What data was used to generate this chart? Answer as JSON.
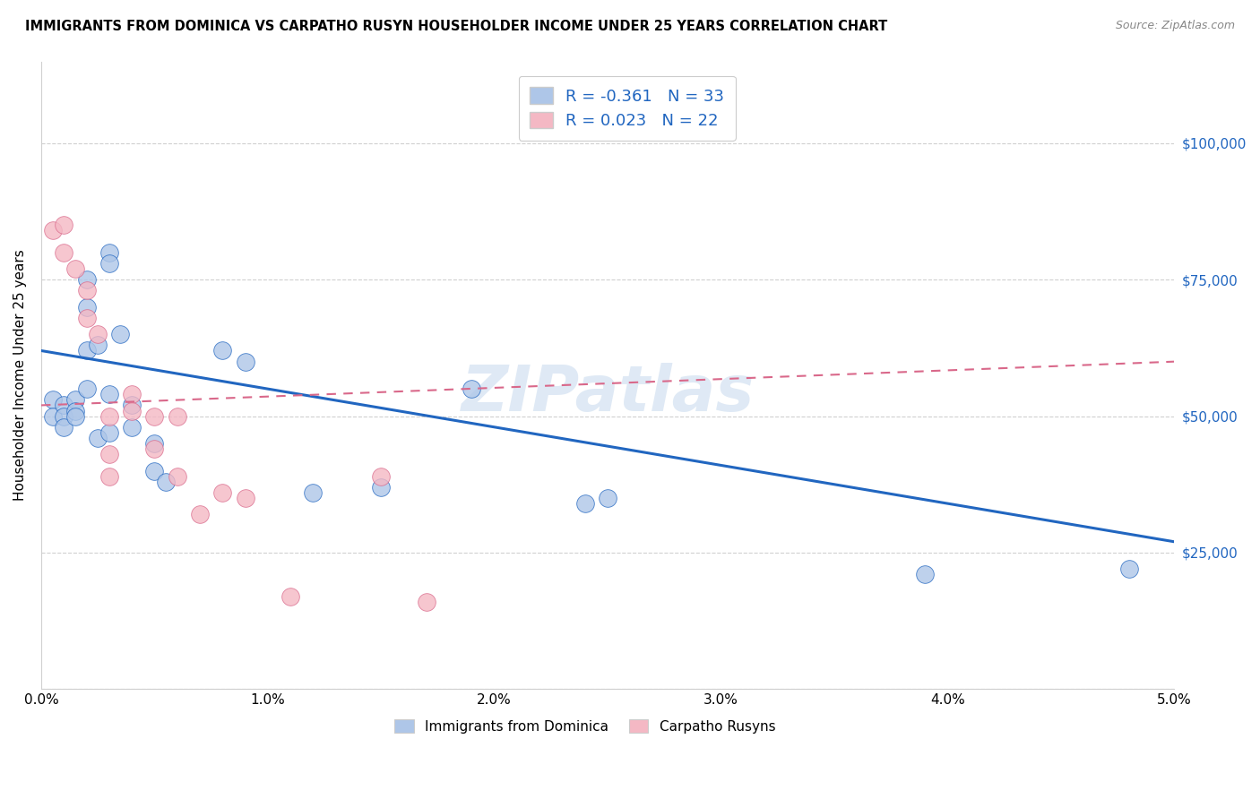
{
  "title": "IMMIGRANTS FROM DOMINICA VS CARPATHO RUSYN HOUSEHOLDER INCOME UNDER 25 YEARS CORRELATION CHART",
  "source": "Source: ZipAtlas.com",
  "ylabel": "Householder Income Under 25 years",
  "xlim": [
    0.0,
    0.05
  ],
  "ylim": [
    0,
    115000
  ],
  "yticks": [
    0,
    25000,
    50000,
    75000,
    100000
  ],
  "ytick_labels": [
    "",
    "$25,000",
    "$50,000",
    "$75,000",
    "$100,000"
  ],
  "xticks": [
    0.0,
    0.01,
    0.02,
    0.03,
    0.04,
    0.05
  ],
  "xtick_labels": [
    "0.0%",
    "1.0%",
    "2.0%",
    "3.0%",
    "4.0%",
    "5.0%"
  ],
  "blue_color": "#aec6e8",
  "pink_color": "#f4b8c4",
  "blue_line_color": "#2166c0",
  "pink_line_color": "#d9688a",
  "legend_R1": "-0.361",
  "legend_N1": "33",
  "legend_R2": "0.023",
  "legend_N2": "22",
  "legend_label1": "Immigrants from Dominica",
  "legend_label2": "Carpatho Rusyns",
  "watermark": "ZIPatlas",
  "blue_trend_x0": 0.0,
  "blue_trend_y0": 62000,
  "blue_trend_x1": 0.05,
  "blue_trend_y1": 27000,
  "pink_trend_x0": 0.0,
  "pink_trend_y0": 52000,
  "pink_trend_x1": 0.05,
  "pink_trend_y1": 60000,
  "blue_x": [
    0.0005,
    0.0005,
    0.001,
    0.001,
    0.001,
    0.0015,
    0.0015,
    0.0015,
    0.002,
    0.002,
    0.002,
    0.002,
    0.0025,
    0.0025,
    0.003,
    0.003,
    0.003,
    0.003,
    0.0035,
    0.004,
    0.004,
    0.005,
    0.005,
    0.0055,
    0.008,
    0.009,
    0.012,
    0.015,
    0.019,
    0.024,
    0.025,
    0.039,
    0.048
  ],
  "blue_y": [
    53000,
    50000,
    52000,
    50000,
    48000,
    53000,
    51000,
    50000,
    75000,
    70000,
    62000,
    55000,
    63000,
    46000,
    80000,
    78000,
    54000,
    47000,
    65000,
    52000,
    48000,
    45000,
    40000,
    38000,
    62000,
    60000,
    36000,
    37000,
    55000,
    34000,
    35000,
    21000,
    22000
  ],
  "pink_x": [
    0.0005,
    0.001,
    0.001,
    0.0015,
    0.002,
    0.002,
    0.0025,
    0.003,
    0.003,
    0.003,
    0.004,
    0.004,
    0.005,
    0.005,
    0.006,
    0.006,
    0.007,
    0.008,
    0.009,
    0.011,
    0.015,
    0.017
  ],
  "pink_y": [
    84000,
    80000,
    85000,
    77000,
    73000,
    68000,
    65000,
    50000,
    43000,
    39000,
    54000,
    51000,
    50000,
    44000,
    50000,
    39000,
    32000,
    36000,
    35000,
    17000,
    39000,
    16000
  ],
  "title_fontsize": 10.5,
  "axis_label_fontsize": 11,
  "tick_fontsize": 11,
  "right_tick_color": "#2166c0"
}
